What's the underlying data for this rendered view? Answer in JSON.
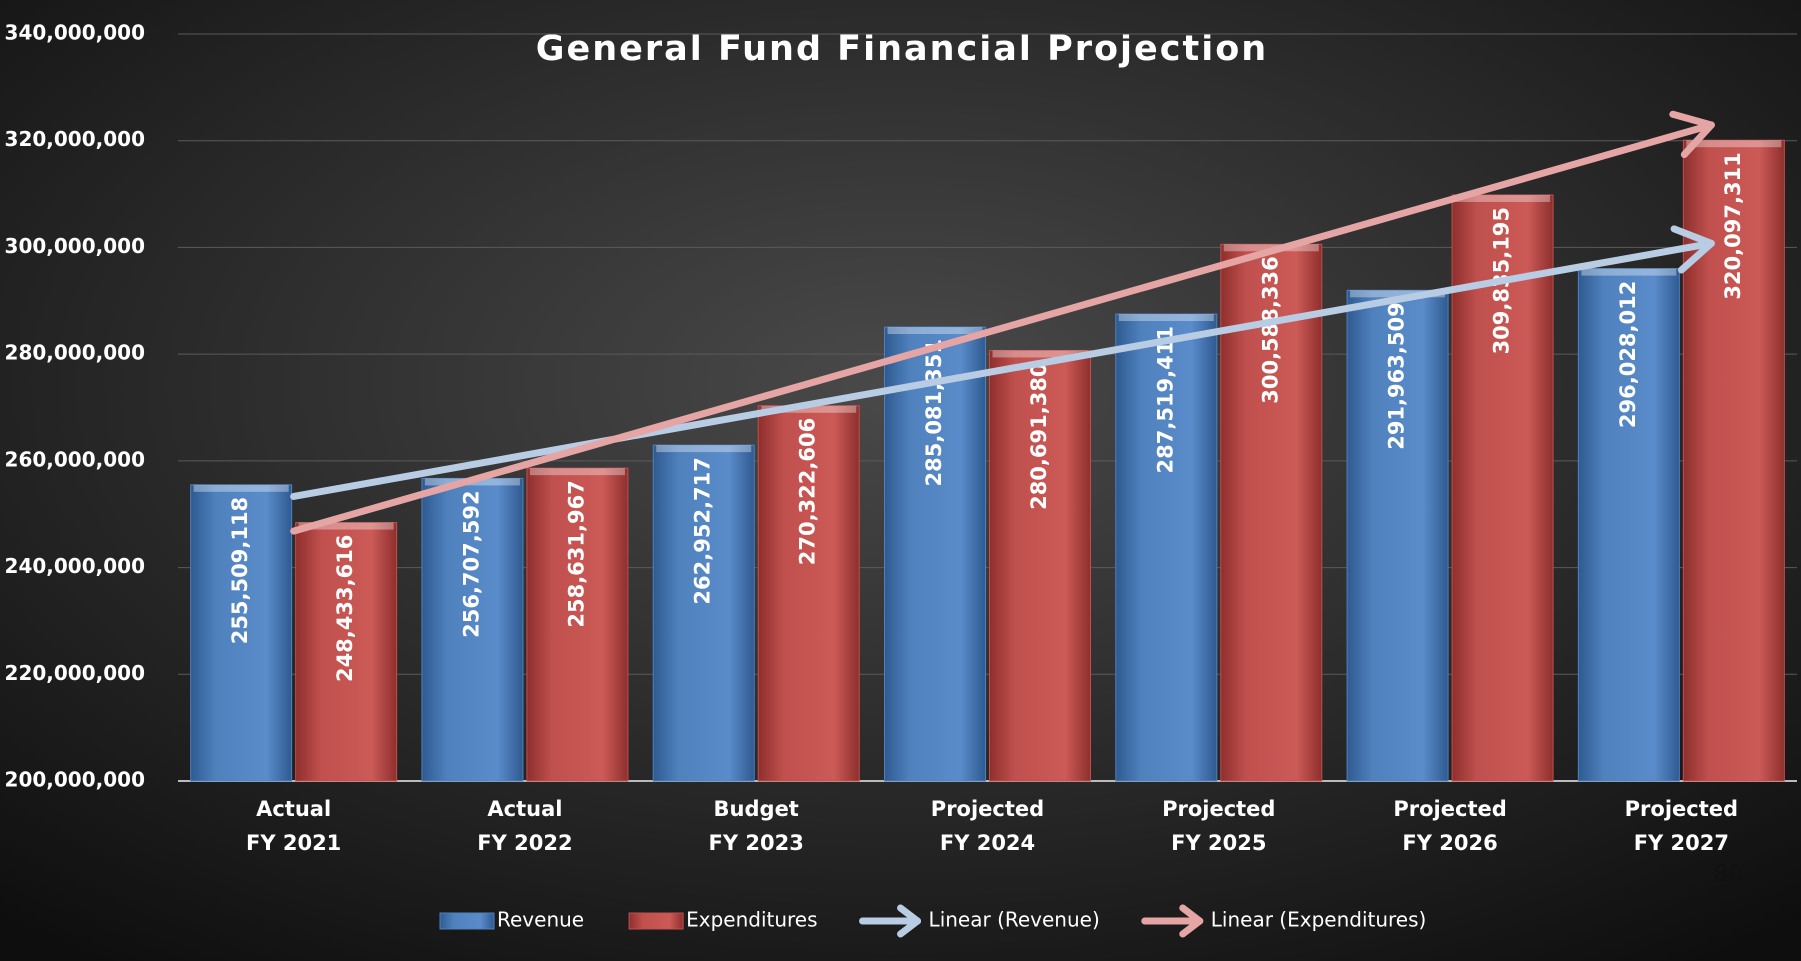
{
  "chart_data": {
    "type": "bar",
    "title": "General Fund Financial Projection",
    "categories": [
      "Actual\nFY 2021",
      "Actual\nFY 2022",
      "Budget\nFY 2023",
      "Projected\nFY 2024",
      "Projected\nFY 2025",
      "Projected\nFY 2026",
      "Projected\nFY 2027"
    ],
    "series": [
      {
        "name": "Revenue",
        "color": "#4f81bd",
        "trend_name": "Linear (Revenue)",
        "trend_color": "#b8cce4",
        "values": [
          255509118,
          256707592,
          262952717,
          285081351,
          287519411,
          291963509,
          296028012
        ],
        "value_labels": [
          "255,509,118",
          "256,707,592",
          "262,952,717",
          "285,081,351",
          "287,519,411",
          "291,963,509",
          "296,028,012"
        ]
      },
      {
        "name": "Expenditures",
        "color": "#c0504d",
        "trend_name": "Linear (Expenditures)",
        "trend_color": "#e6a5a5",
        "values": [
          248433616,
          258631967,
          270322606,
          280691380,
          300588336,
          309835195,
          320097311
        ],
        "value_labels": [
          "248,433,616",
          "258,631,967",
          "270,322,606",
          "280,691,380",
          "300,588,336",
          "309,835,195",
          "320,097,311"
        ]
      }
    ],
    "ylim": [
      200000000,
      340000000
    ],
    "yticks": [
      {
        "value": 200000000,
        "label": "200,000,000"
      },
      {
        "value": 220000000,
        "label": "220,000,000"
      },
      {
        "value": 240000000,
        "label": "240,000,000"
      },
      {
        "value": 260000000,
        "label": "260,000,000"
      },
      {
        "value": 280000000,
        "label": "280,000,000"
      },
      {
        "value": 300000000,
        "label": "300,000,000"
      },
      {
        "value": 320000000,
        "label": "320,000,000"
      },
      {
        "value": 340000000,
        "label": "340,000,000"
      }
    ],
    "grid": true,
    "legend": "bottom",
    "page_number": "80"
  }
}
